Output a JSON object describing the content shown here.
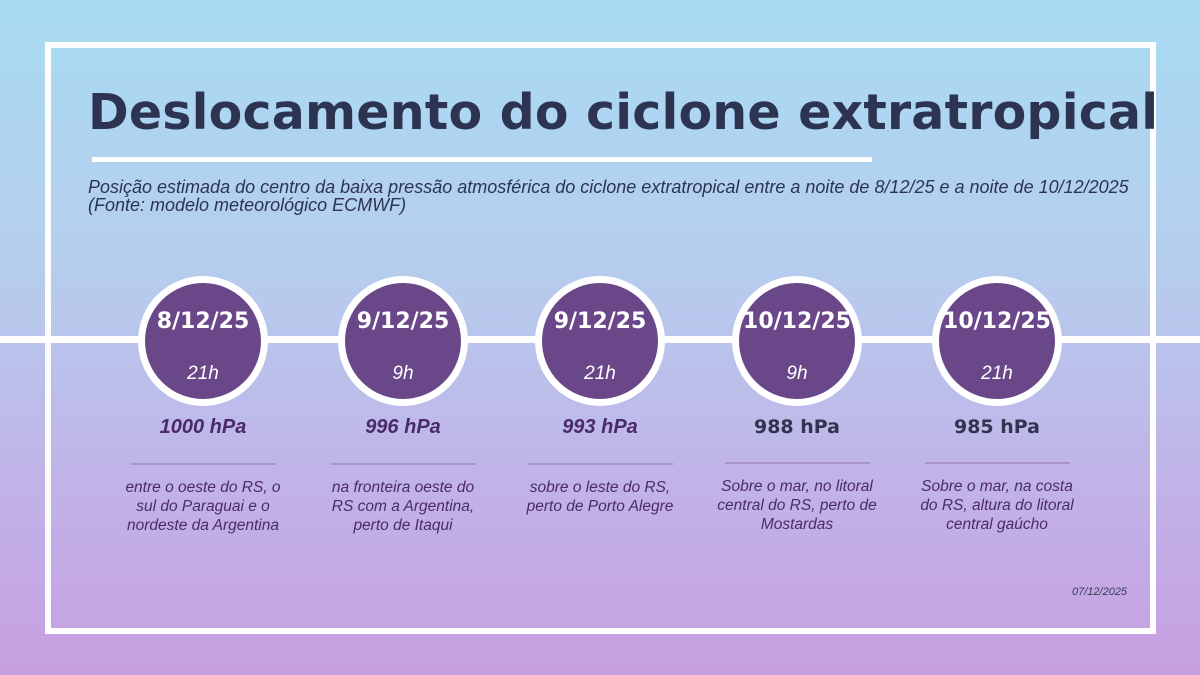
{
  "title": "Deslocamento do ciclone extratropical",
  "subtitle": "Posição estimada do centro da baixa pressão atmosférica do ciclone extratropical entre a noite de 8/12/25 e a noite de 10/12/2025 (Fonte: modelo meteorológico ECMWF)",
  "colors": {
    "circle": "#6a4789",
    "title": "#2c3452",
    "accent_text": "#4b2a6b"
  },
  "timeline": [
    {
      "date": "8/12/25",
      "hour": "21h",
      "pressure": "1000 hPa",
      "description": "entre o oeste do RS, o sul do Paraguai e o nordeste da Argentina"
    },
    {
      "date": "9/12/25",
      "hour": "9h",
      "pressure": "996 hPa",
      "description": "na fronteira oeste do RS com a Argentina, perto de Itaqui"
    },
    {
      "date": "9/12/25",
      "hour": "21h",
      "pressure": "993 hPa",
      "description": "sobre o leste do RS, perto de Porto Alegre"
    },
    {
      "date": "10/12/25",
      "hour": "9h",
      "pressure": "988 hPa",
      "description": "Sobre o mar, no litoral central do RS, perto de Mostardas"
    },
    {
      "date": "10/12/25",
      "hour": "21h",
      "pressure": "985 hPa",
      "description": "Sobre o mar, na costa do RS, altura do litoral central gaúcho"
    }
  ],
  "date_stamp": "07/12/2025"
}
